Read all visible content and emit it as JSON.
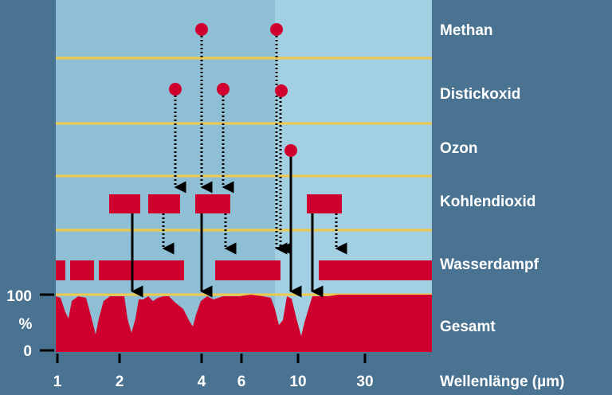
{
  "labels": {
    "methan": "Methan",
    "distickoxid": "Distickoxid",
    "ozon": "Ozon",
    "kohlendioxid": "Kohlendioxid",
    "wasserdampf": "Wasserdampf",
    "gesamt": "Gesamt",
    "xlabel": "Wellenlänge (µm)"
  },
  "y_axis": {
    "top": "100",
    "unit": "%",
    "bottom": "0"
  },
  "x_ticks": [
    "1",
    "2",
    "4",
    "6",
    "10",
    "30"
  ],
  "colors": {
    "background": "#4a7392",
    "panel": "#8fbfd5",
    "panel_right": "#a2cfe1",
    "absorption": "#d0002e",
    "separator": "#f0c94a",
    "arrow": "#000000"
  }
}
